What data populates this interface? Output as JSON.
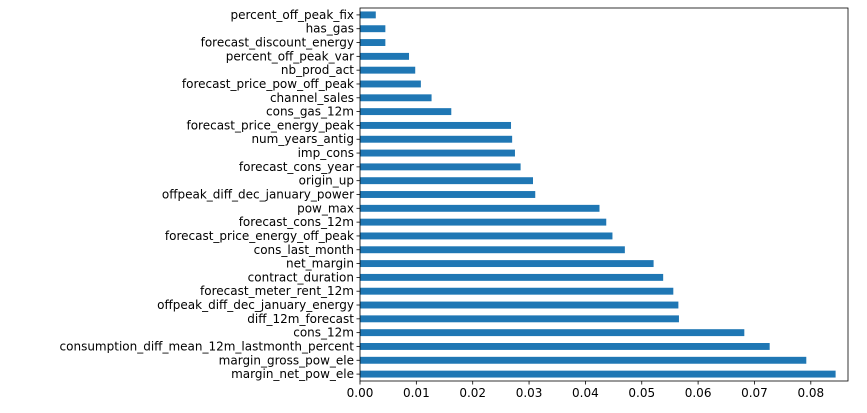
{
  "chart_data": {
    "type": "bar",
    "orientation": "horizontal",
    "categories": [
      "margin_net_pow_ele",
      "margin_gross_pow_ele",
      "consumption_diff_mean_12m_lastmonth_percent",
      "cons_12m",
      "diff_12m_forecast",
      "offpeak_diff_dec_january_energy",
      "forecast_meter_rent_12m",
      "contract_duration",
      "net_margin",
      "cons_last_month",
      "forecast_price_energy_off_peak",
      "forecast_cons_12m",
      "pow_max",
      "offpeak_diff_dec_january_power",
      "origin_up",
      "forecast_cons_year",
      "imp_cons",
      "num_years_antig",
      "forecast_price_energy_peak",
      "cons_gas_12m",
      "channel_sales",
      "forecast_price_pow_off_peak",
      "nb_prod_act",
      "percent_off_peak_var",
      "forecast_discount_energy",
      "has_gas",
      "percent_off_peak_fix"
    ],
    "values": [
      0.0844,
      0.0792,
      0.0727,
      0.0682,
      0.0566,
      0.0565,
      0.0556,
      0.0538,
      0.0521,
      0.047,
      0.0448,
      0.0437,
      0.0425,
      0.0311,
      0.0307,
      0.0285,
      0.0275,
      0.027,
      0.0268,
      0.0162,
      0.0127,
      0.0108,
      0.0098,
      0.0087,
      0.0045,
      0.0045,
      0.0028
    ],
    "xlim": [
      0,
      0.0866
    ],
    "xticks": [
      "0.00",
      "0.01",
      "0.02",
      "0.03",
      "0.04",
      "0.05",
      "0.06",
      "0.07",
      "0.08"
    ],
    "xtick_values": [
      0,
      0.01,
      0.02,
      0.03,
      0.04,
      0.05,
      0.06,
      0.07,
      0.08
    ],
    "title": "",
    "xlabel": "",
    "ylabel": "",
    "grid": false,
    "legend": "none",
    "bar_color": "#1f77b4"
  }
}
